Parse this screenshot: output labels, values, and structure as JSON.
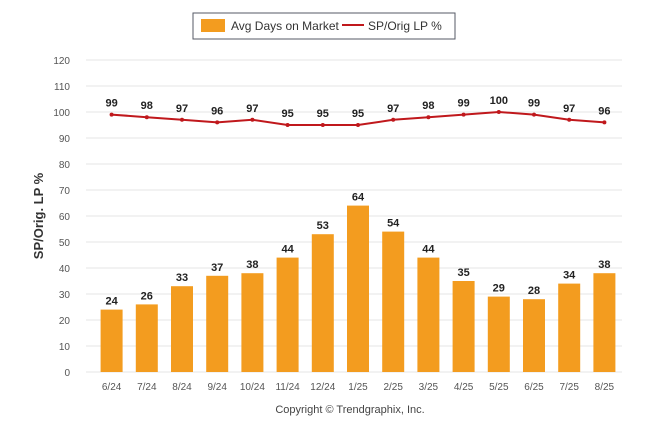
{
  "chart_data": {
    "type": "bar",
    "categories": [
      "6/24",
      "7/24",
      "8/24",
      "9/24",
      "10/24",
      "11/24",
      "12/24",
      "1/25",
      "2/25",
      "3/25",
      "4/25",
      "5/25",
      "6/25",
      "7/25",
      "8/25"
    ],
    "series": [
      {
        "name": "Avg Days on Market",
        "type": "bar",
        "color": "#f39c1f",
        "values": [
          24,
          26,
          33,
          37,
          38,
          44,
          53,
          64,
          54,
          44,
          35,
          29,
          28,
          34,
          38
        ]
      },
      {
        "name": "SP/Orig LP %",
        "type": "line",
        "color": "#c0181c",
        "values": [
          99,
          98,
          97,
          96,
          97,
          95,
          95,
          95,
          97,
          98,
          99,
          100,
          99,
          97,
          96
        ]
      }
    ],
    "ylabel": "SP/Orig. LP %",
    "ylim": [
      0,
      120
    ],
    "yticks": [
      0,
      10,
      20,
      30,
      40,
      50,
      60,
      70,
      80,
      90,
      100,
      110,
      120
    ],
    "grid": true,
    "legend_position": "top-center",
    "credit": "Copyright © Trendgraphix, Inc."
  }
}
